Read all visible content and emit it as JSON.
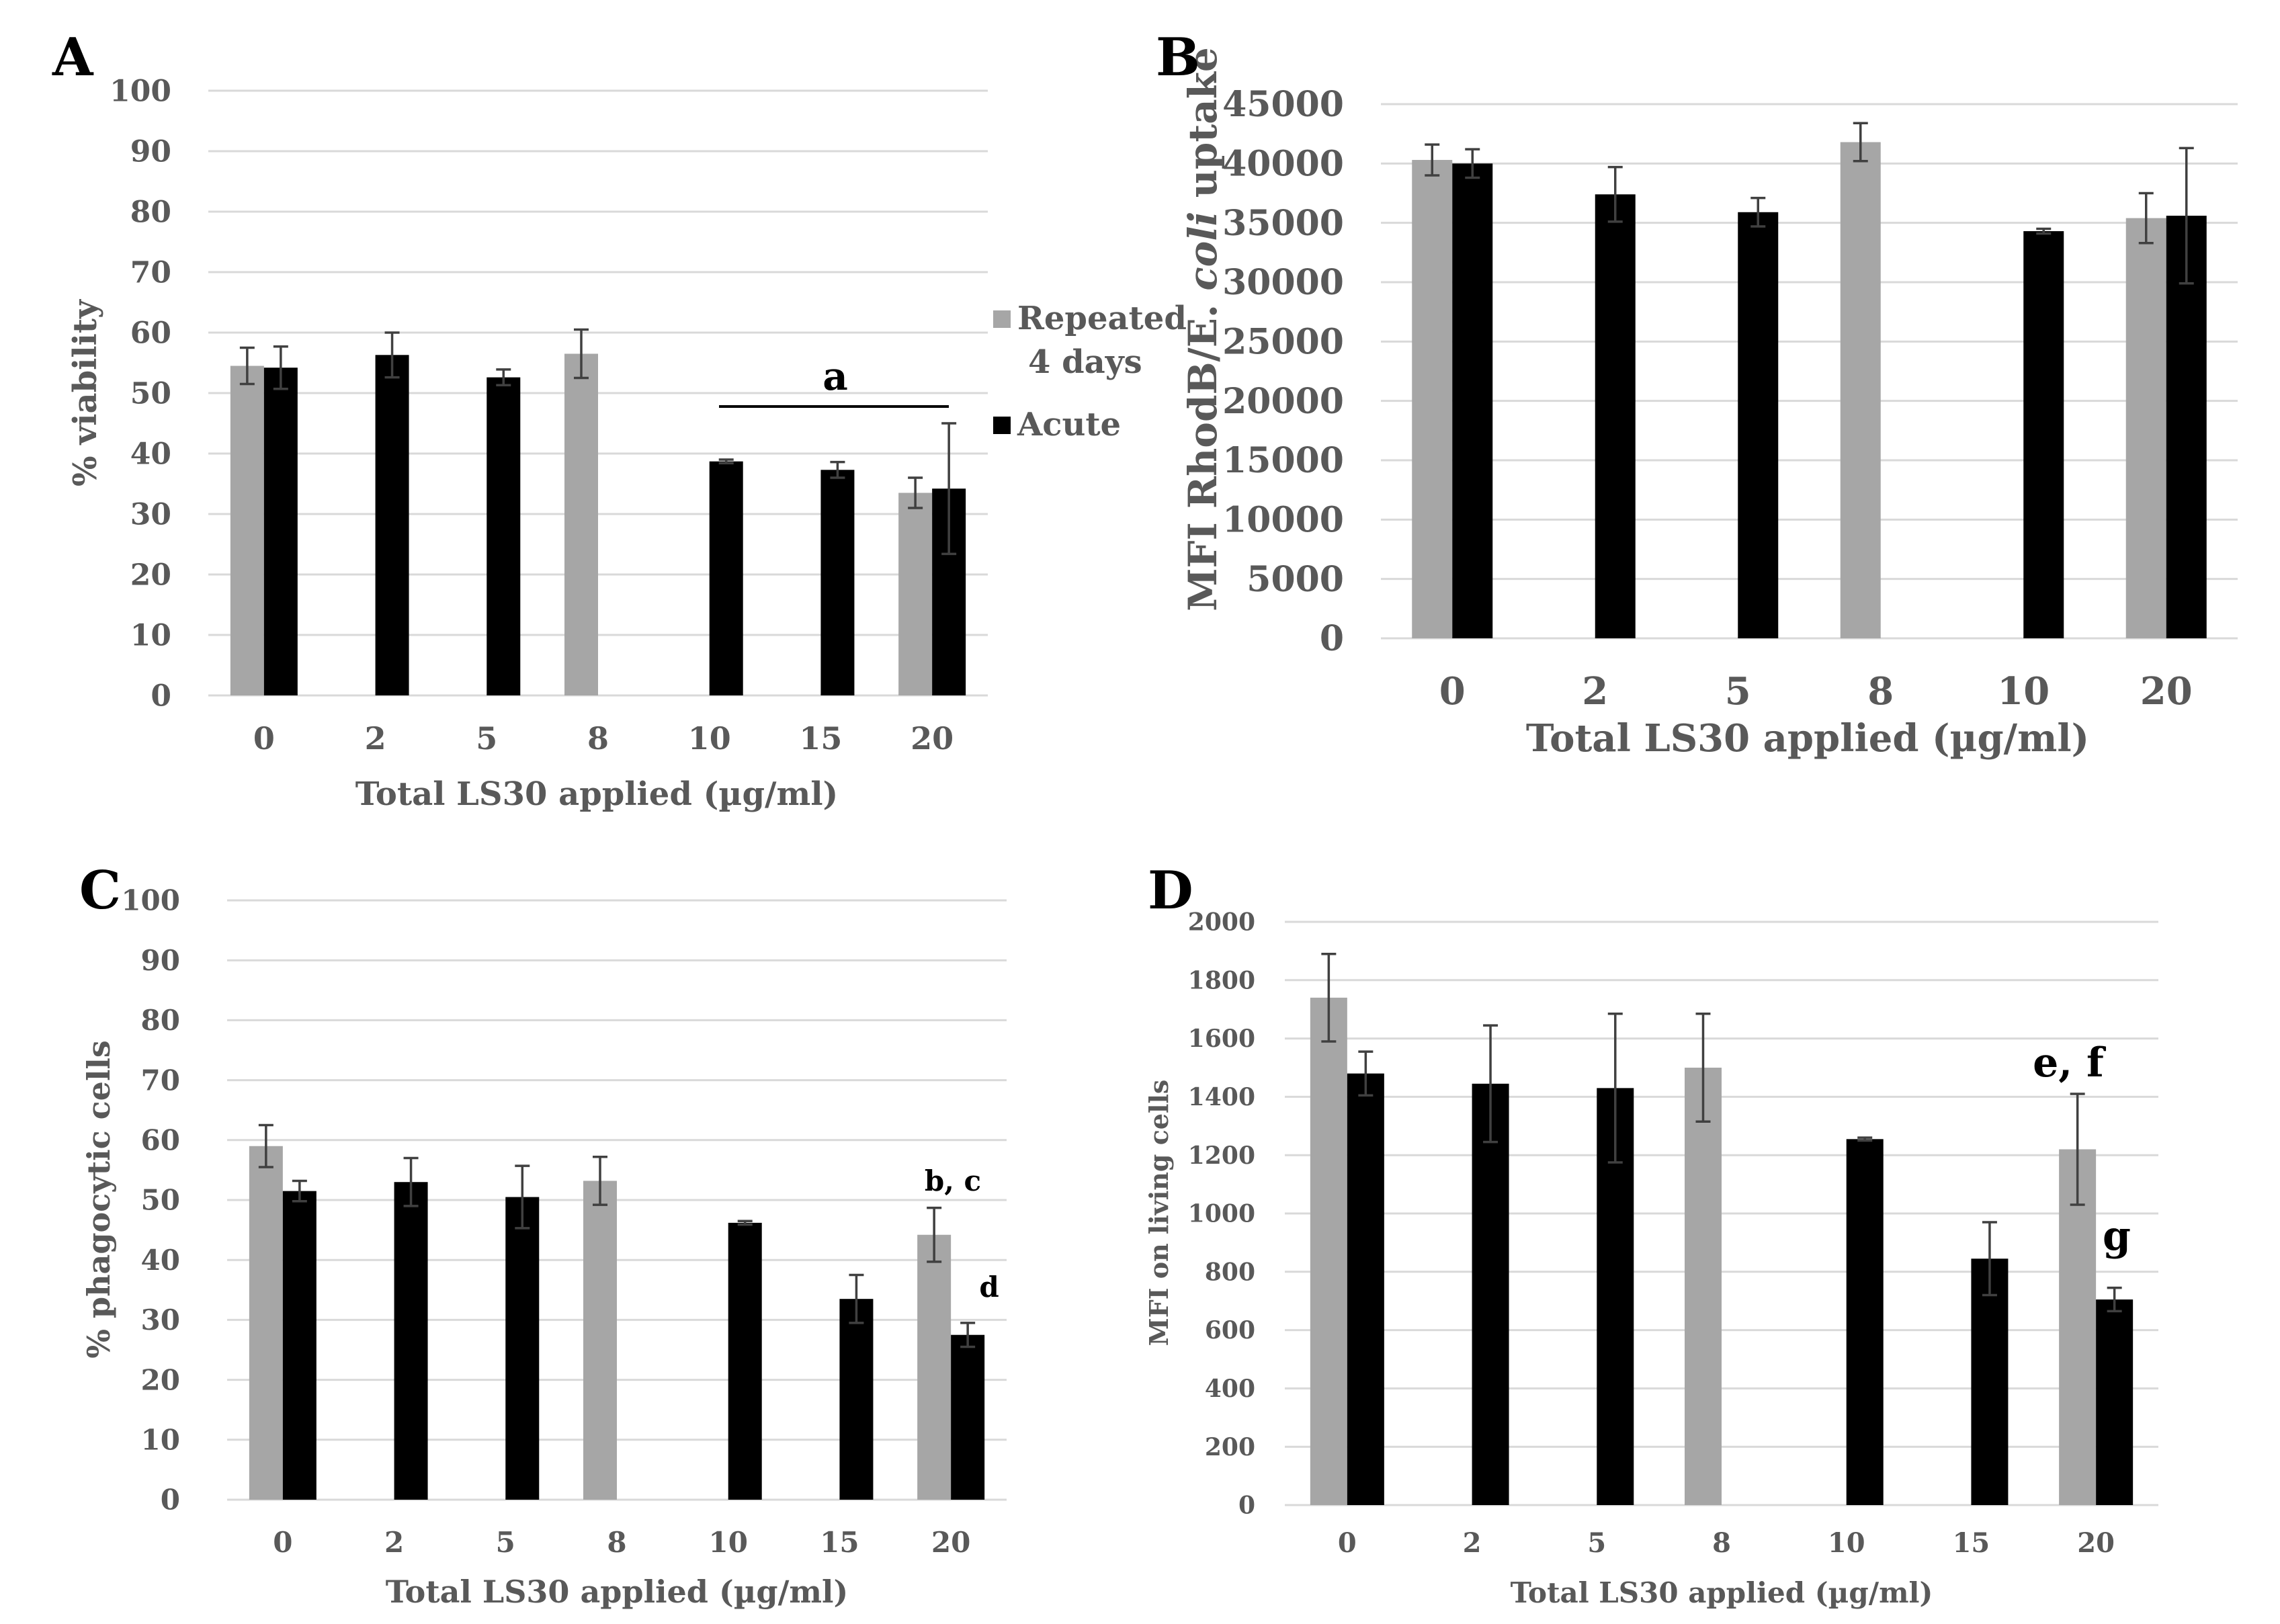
{
  "colors": {
    "repeated": "#a6a6a6",
    "acute": "#000000",
    "grid": "#d9d9d9",
    "text": "#595959"
  },
  "legend": {
    "repeated_line1": "Repeated",
    "repeated_line2": "4 days",
    "acute": "Acute"
  },
  "chart_data": [
    {
      "panel": "A",
      "type": "bar",
      "ylabel": "% viability",
      "xlabel": "Total LS30 applied (µg/ml)",
      "categories": [
        "0",
        "2",
        "5",
        "8",
        "10",
        "15",
        "20"
      ],
      "ylim": [
        0,
        100
      ],
      "yticks": [
        "0",
        "10",
        "20",
        "30",
        "40",
        "50",
        "60",
        "70",
        "80",
        "90",
        "100"
      ],
      "series": [
        {
          "name": "Repeated 4 days",
          "values": [
            54.5,
            null,
            null,
            56.5,
            null,
            null,
            33.5
          ],
          "errors": [
            3,
            null,
            null,
            4,
            null,
            null,
            2.5
          ]
        },
        {
          "name": "Acute",
          "values": [
            54.2,
            56.3,
            52.6,
            null,
            38.7,
            37.3,
            34.2
          ],
          "errors": [
            3.5,
            3.7,
            1.3,
            null,
            0.3,
            1.3,
            10.8
          ]
        }
      ],
      "annotations": [
        "a"
      ]
    },
    {
      "panel": "B",
      "type": "bar",
      "ylabel_main": "MFI RhodB/E. ",
      "ylabel_italic": "coli",
      "ylabel_tail": " uptake",
      "xlabel": "Total LS30 applied (µg/ml)",
      "categories": [
        "0",
        "2",
        "5",
        "8",
        "10",
        "20"
      ],
      "ylim": [
        0,
        45000
      ],
      "yticks": [
        "0",
        "5000",
        "10000",
        "15000",
        "20000",
        "25000",
        "30000",
        "35000",
        "40000",
        "45000"
      ],
      "series": [
        {
          "name": "Repeated 4 days",
          "values": [
            40300,
            null,
            null,
            41800,
            null,
            35400
          ],
          "errors": [
            1300,
            null,
            null,
            1600,
            null,
            2100
          ]
        },
        {
          "name": "Acute",
          "values": [
            40000,
            37400,
            35900,
            null,
            34300,
            35600
          ],
          "errors": [
            1200,
            2300,
            1200,
            null,
            200,
            5700
          ]
        }
      ]
    },
    {
      "panel": "C",
      "type": "bar",
      "ylabel": "%  phagocytic cells",
      "xlabel": "Total LS30 applied (µg/ml)",
      "categories": [
        "0",
        "2",
        "5",
        "8",
        "10",
        "15",
        "20"
      ],
      "ylim": [
        0,
        100
      ],
      "yticks": [
        "0",
        "10",
        "20",
        "30",
        "40",
        "50",
        "60",
        "70",
        "80",
        "90",
        "100"
      ],
      "series": [
        {
          "name": "Repeated 4 days",
          "values": [
            59,
            null,
            null,
            53.2,
            null,
            null,
            44.2
          ],
          "errors": [
            3.5,
            null,
            null,
            4,
            null,
            null,
            4.5
          ]
        },
        {
          "name": "Acute",
          "values": [
            51.5,
            53,
            50.5,
            null,
            46.2,
            33.5,
            27.5
          ],
          "errors": [
            1.7,
            4,
            5.2,
            null,
            0.3,
            4,
            2
          ]
        }
      ],
      "annotations": [
        "b, c",
        "d"
      ]
    },
    {
      "panel": "D",
      "type": "bar",
      "ylabel": "MFI on living cells",
      "xlabel": "Total LS30 applied (µg/ml)",
      "categories": [
        "0",
        "2",
        "5",
        "8",
        "10",
        "15",
        "20"
      ],
      "ylim": [
        0,
        2000
      ],
      "yticks": [
        "0",
        "200",
        "400",
        "600",
        "800",
        "1000",
        "1200",
        "1400",
        "1600",
        "1800",
        "2000"
      ],
      "series": [
        {
          "name": "Repeated 4 days",
          "values": [
            1740,
            null,
            null,
            1500,
            null,
            null,
            1220
          ],
          "errors": [
            150,
            null,
            null,
            185,
            null,
            null,
            190
          ]
        },
        {
          "name": "Acute",
          "values": [
            1480,
            1445,
            1430,
            null,
            1255,
            845,
            705
          ],
          "errors": [
            75,
            200,
            255,
            null,
            5,
            125,
            40
          ]
        }
      ],
      "annotations": [
        "e, f",
        "g"
      ]
    }
  ]
}
